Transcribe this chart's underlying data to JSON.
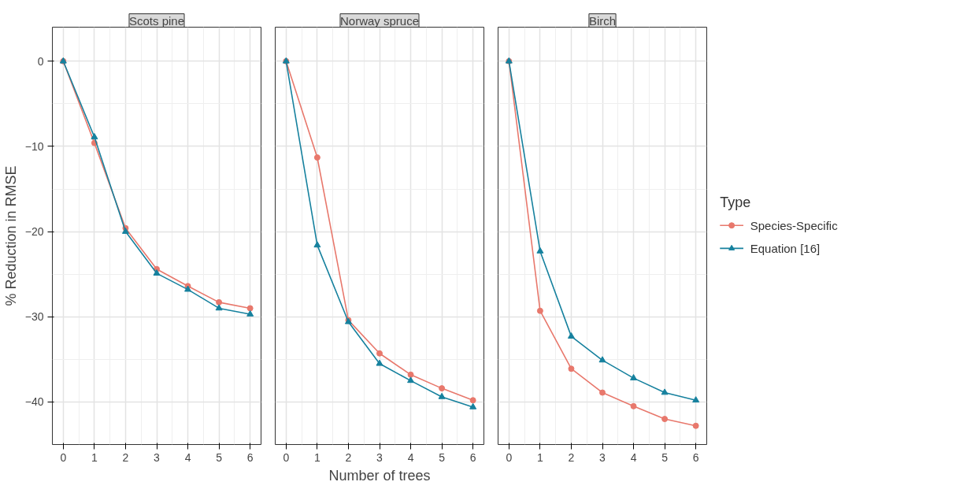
{
  "chart_data": [
    {
      "type": "line",
      "title": "Scots pine",
      "ylabel": "% Reduction in RMSE",
      "x": [
        0,
        1,
        2,
        3,
        4,
        5,
        6
      ],
      "xlim": [
        -0.35,
        6.35
      ],
      "ylim": [
        -45,
        4
      ],
      "xticks": [
        0,
        1,
        2,
        3,
        4,
        5,
        6
      ],
      "yticks": [
        -40,
        -30,
        -20,
        -10,
        0
      ],
      "grid": true,
      "series": [
        {
          "color": "#e8786c",
          "marker": "circle",
          "values": [
            0,
            -9.6,
            -19.6,
            -24.4,
            -26.4,
            -28.3,
            -29.0
          ]
        },
        {
          "color": "#16819e",
          "marker": "triangle",
          "values": [
            0,
            -8.9,
            -20.0,
            -24.9,
            -26.8,
            -29.0,
            -29.7
          ]
        }
      ]
    },
    {
      "type": "line",
      "title": "Norway spruce",
      "xlabel": "Number of trees",
      "x": [
        0,
        1,
        2,
        3,
        4,
        5,
        6
      ],
      "xlim": [
        -0.35,
        6.35
      ],
      "ylim": [
        -45,
        4
      ],
      "xticks": [
        0,
        1,
        2,
        3,
        4,
        5,
        6
      ],
      "yticks": [
        -40,
        -30,
        -20,
        -10,
        0
      ],
      "grid": true,
      "tick_labels": "x",
      "series": [
        {
          "color": "#e8786c",
          "marker": "circle",
          "values": [
            0,
            -11.3,
            -30.4,
            -34.3,
            -36.8,
            -38.4,
            -39.8
          ]
        },
        {
          "color": "#16819e",
          "marker": "triangle",
          "values": [
            0,
            -21.6,
            -30.6,
            -35.5,
            -37.5,
            -39.4,
            -40.6
          ]
        }
      ]
    },
    {
      "type": "line",
      "title": "Birch",
      "legend_title": "Type",
      "legend": "right",
      "x": [
        0,
        1,
        2,
        3,
        4,
        5,
        6
      ],
      "xlim": [
        -0.35,
        6.35
      ],
      "ylim": [
        -45,
        4
      ],
      "xticks": [
        0,
        1,
        2,
        3,
        4,
        5,
        6
      ],
      "yticks": [
        -40,
        -30,
        -20,
        -10,
        0
      ],
      "grid": true,
      "tick_labels": "x",
      "series": [
        {
          "name": "Species-Specific",
          "color": "#e8786c",
          "marker": "circle",
          "values": [
            0,
            -29.3,
            -36.1,
            -38.9,
            -40.5,
            -42.0,
            -42.8
          ]
        },
        {
          "name": "Equation [16]",
          "color": "#16819e",
          "marker": "triangle",
          "values": [
            0,
            -22.3,
            -32.3,
            -35.1,
            -37.2,
            -38.9,
            -39.8
          ]
        }
      ]
    }
  ]
}
